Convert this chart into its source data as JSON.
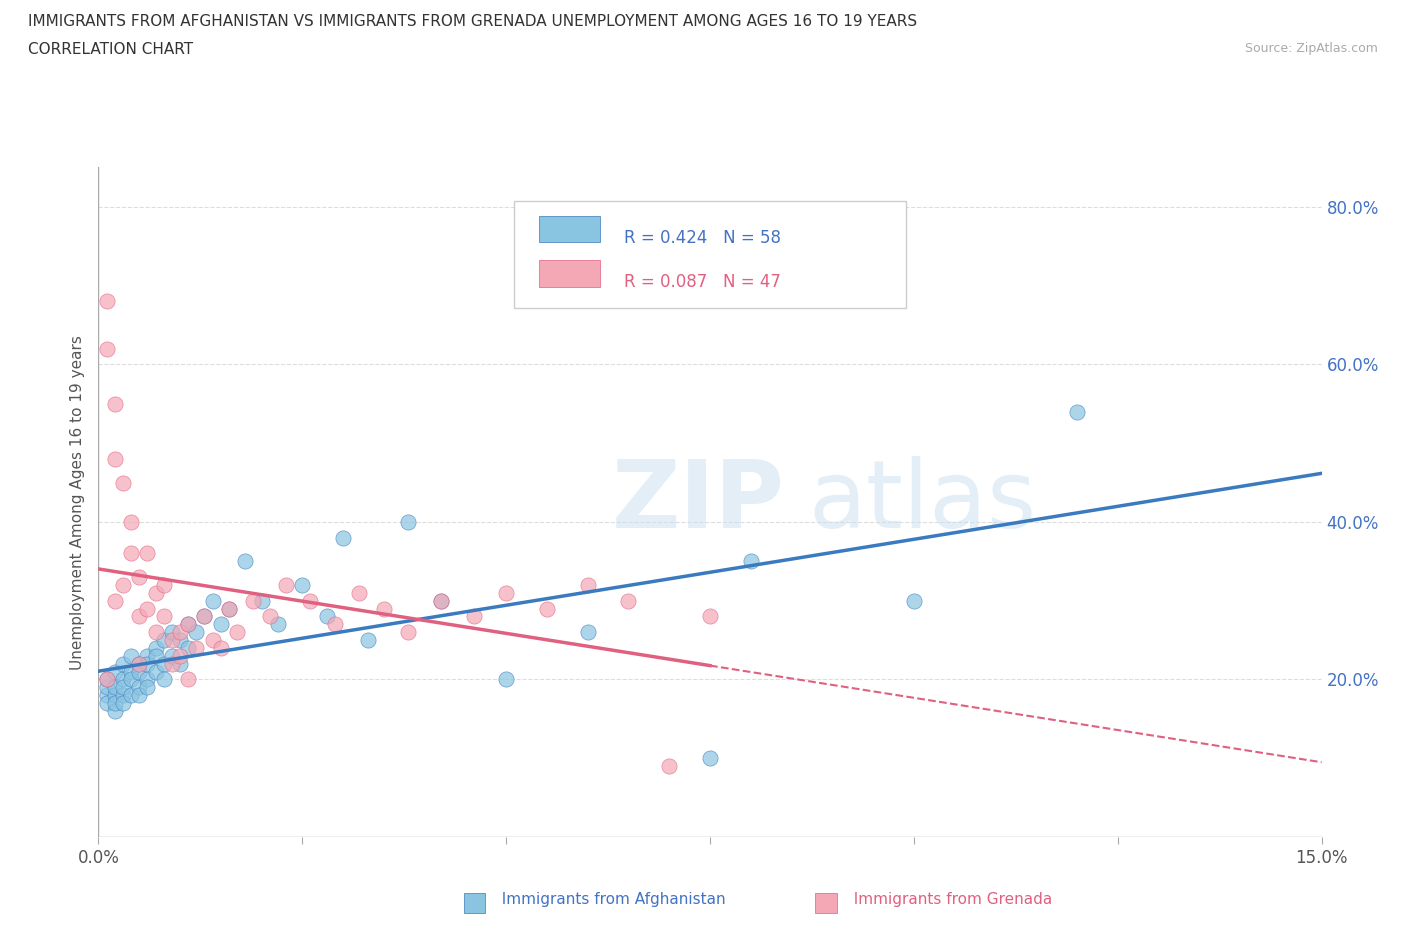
{
  "title_line1": "IMMIGRANTS FROM AFGHANISTAN VS IMMIGRANTS FROM GRENADA UNEMPLOYMENT AMONG AGES 16 TO 19 YEARS",
  "title_line2": "CORRELATION CHART",
  "source_text": "Source: ZipAtlas.com",
  "ylabel": "Unemployment Among Ages 16 to 19 years",
  "xlim": [
    0.0,
    0.15
  ],
  "ylim": [
    0.0,
    0.85
  ],
  "y_ticks_right": [
    0.2,
    0.4,
    0.6,
    0.8
  ],
  "y_tick_labels_right": [
    "20.0%",
    "40.0%",
    "60.0%",
    "80.0%"
  ],
  "legend_r1": "R = 0.424",
  "legend_n1": "N = 58",
  "legend_r2": "R = 0.087",
  "legend_n2": "N = 47",
  "color_afghanistan": "#89c4e1",
  "color_grenada": "#f4a7b5",
  "color_afg_line": "#3a7abf",
  "color_gren_line": "#e06080",
  "watermark_zip": "ZIP",
  "watermark_atlas": "atlas",
  "afghanistan_x": [
    0.001,
    0.001,
    0.001,
    0.001,
    0.002,
    0.002,
    0.002,
    0.002,
    0.002,
    0.003,
    0.003,
    0.003,
    0.003,
    0.003,
    0.004,
    0.004,
    0.004,
    0.004,
    0.005,
    0.005,
    0.005,
    0.005,
    0.006,
    0.006,
    0.006,
    0.006,
    0.007,
    0.007,
    0.007,
    0.008,
    0.008,
    0.008,
    0.009,
    0.009,
    0.01,
    0.01,
    0.011,
    0.011,
    0.012,
    0.013,
    0.014,
    0.015,
    0.016,
    0.018,
    0.02,
    0.022,
    0.025,
    0.028,
    0.03,
    0.033,
    0.038,
    0.042,
    0.05,
    0.06,
    0.075,
    0.08,
    0.1,
    0.12
  ],
  "afghanistan_y": [
    0.18,
    0.19,
    0.17,
    0.2,
    0.16,
    0.21,
    0.18,
    0.19,
    0.17,
    0.2,
    0.18,
    0.22,
    0.17,
    0.19,
    0.21,
    0.18,
    0.23,
    0.2,
    0.19,
    0.22,
    0.18,
    0.21,
    0.2,
    0.23,
    0.19,
    0.22,
    0.24,
    0.21,
    0.23,
    0.22,
    0.25,
    0.2,
    0.23,
    0.26,
    0.25,
    0.22,
    0.27,
    0.24,
    0.26,
    0.28,
    0.3,
    0.27,
    0.29,
    0.35,
    0.3,
    0.27,
    0.32,
    0.28,
    0.38,
    0.25,
    0.4,
    0.3,
    0.2,
    0.26,
    0.1,
    0.35,
    0.3,
    0.54
  ],
  "grenada_x": [
    0.001,
    0.001,
    0.001,
    0.002,
    0.002,
    0.002,
    0.003,
    0.003,
    0.004,
    0.004,
    0.005,
    0.005,
    0.005,
    0.006,
    0.006,
    0.007,
    0.007,
    0.008,
    0.008,
    0.009,
    0.009,
    0.01,
    0.01,
    0.011,
    0.011,
    0.012,
    0.013,
    0.014,
    0.015,
    0.016,
    0.017,
    0.019,
    0.021,
    0.023,
    0.026,
    0.029,
    0.032,
    0.035,
    0.038,
    0.042,
    0.046,
    0.05,
    0.055,
    0.06,
    0.065,
    0.07,
    0.075
  ],
  "grenada_y": [
    0.68,
    0.62,
    0.2,
    0.55,
    0.48,
    0.3,
    0.45,
    0.32,
    0.4,
    0.36,
    0.33,
    0.28,
    0.22,
    0.36,
    0.29,
    0.31,
    0.26,
    0.32,
    0.28,
    0.25,
    0.22,
    0.26,
    0.23,
    0.27,
    0.2,
    0.24,
    0.28,
    0.25,
    0.24,
    0.29,
    0.26,
    0.3,
    0.28,
    0.32,
    0.3,
    0.27,
    0.31,
    0.29,
    0.26,
    0.3,
    0.28,
    0.31,
    0.29,
    0.32,
    0.3,
    0.09,
    0.28
  ],
  "background_color": "#ffffff",
  "grid_color": "#dddddd"
}
